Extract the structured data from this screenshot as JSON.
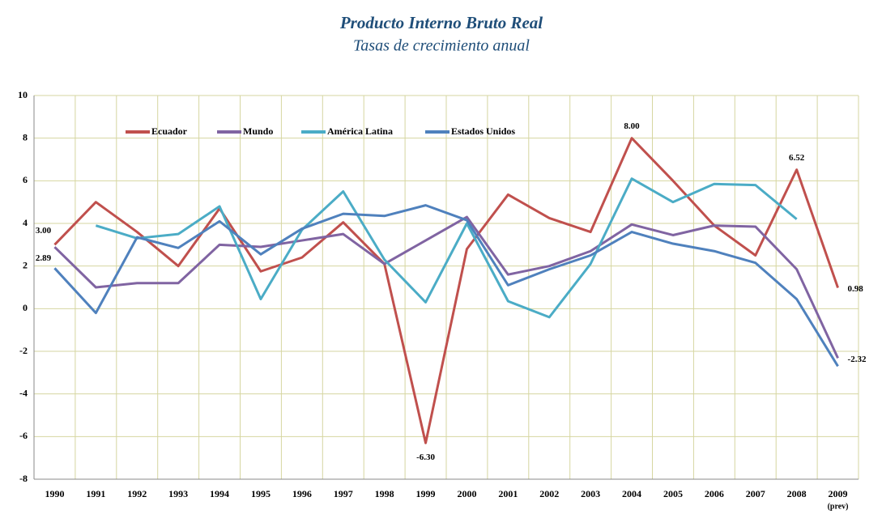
{
  "chart_data": {
    "type": "line",
    "title": "Producto Interno Bruto Real",
    "subtitle": "Tasas de crecimiento anual",
    "categories": [
      "1990",
      "1991",
      "1992",
      "1993",
      "1994",
      "1995",
      "1996",
      "1997",
      "1998",
      "1999",
      "2000",
      "2001",
      "2002",
      "2003",
      "2004",
      "2005",
      "2006",
      "2007",
      "2008",
      "2009"
    ],
    "x_note": "(prev)",
    "series": [
      {
        "name": "Ecuador",
        "color": "#c0504d",
        "values": [
          3.0,
          5.0,
          3.6,
          2.0,
          4.7,
          1.75,
          2.4,
          4.05,
          2.1,
          -6.3,
          2.8,
          5.35,
          4.25,
          3.6,
          8.0,
          6.0,
          3.9,
          2.5,
          6.52,
          0.98
        ],
        "value_labels": [
          "3.00",
          null,
          null,
          null,
          null,
          null,
          null,
          null,
          null,
          "-6.30",
          null,
          null,
          null,
          null,
          "8.00",
          null,
          null,
          null,
          "6.52",
          "0.98"
        ]
      },
      {
        "name": "Mundo",
        "color": "#8064a2",
        "values": [
          2.89,
          1.0,
          1.2,
          1.2,
          3.0,
          2.9,
          3.2,
          3.5,
          2.1,
          3.2,
          4.3,
          1.6,
          2.0,
          2.7,
          3.95,
          3.45,
          3.9,
          3.85,
          1.85,
          -2.32
        ],
        "value_labels": [
          "2.89",
          null,
          null,
          null,
          null,
          null,
          null,
          null,
          null,
          null,
          null,
          null,
          null,
          null,
          null,
          null,
          null,
          null,
          null,
          "-2.32"
        ]
      },
      {
        "name": "América Latina",
        "color": "#4bacc6",
        "values": [
          null,
          3.9,
          3.3,
          3.5,
          4.8,
          0.45,
          3.7,
          5.5,
          2.3,
          0.3,
          4.0,
          0.35,
          -0.4,
          2.1,
          6.1,
          5.0,
          5.85,
          5.8,
          4.2,
          null
        ]
      },
      {
        "name": "Estados Unidos",
        "color": "#4f81bd",
        "values": [
          1.9,
          -0.2,
          3.35,
          2.85,
          4.1,
          2.55,
          3.75,
          4.45,
          4.35,
          4.85,
          4.15,
          1.1,
          1.85,
          2.5,
          3.6,
          3.05,
          2.7,
          2.15,
          0.45,
          -2.7
        ]
      }
    ],
    "ylim": [
      -8,
      10
    ],
    "yticks": [
      -8,
      -6,
      -4,
      -2,
      0,
      2,
      4,
      6,
      8,
      10
    ],
    "grid": true,
    "legend": "top"
  }
}
